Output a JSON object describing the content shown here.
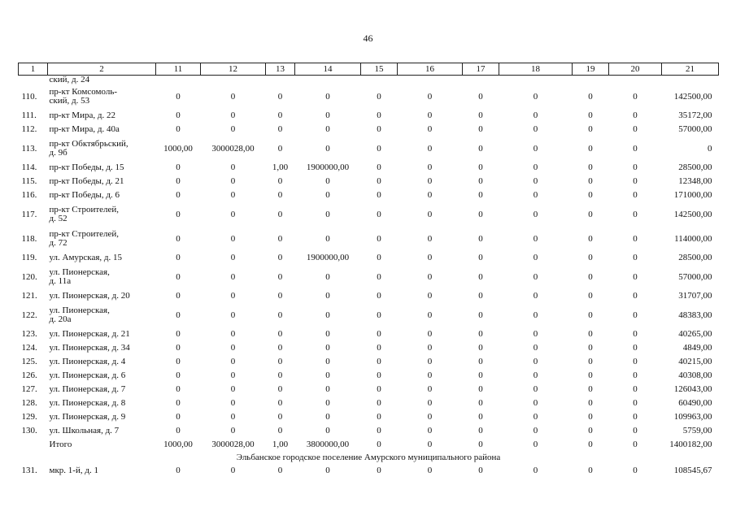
{
  "page_number": "46",
  "header": [
    "1",
    "2",
    "11",
    "12",
    "13",
    "14",
    "15",
    "16",
    "17",
    "18",
    "19",
    "20",
    "21"
  ],
  "continuation": "ский, д. 24",
  "rows": [
    {
      "num": "110.",
      "addr": [
        "пр-кт Комсомоль-",
        "ский, д. 53"
      ],
      "c11": "0",
      "c12": "0",
      "c13": "0",
      "c14": "0",
      "c15": "0",
      "c16": "0",
      "c17": "0",
      "c18": "0",
      "c19": "0",
      "c20": "0",
      "c21": "142500,00"
    },
    {
      "num": "111.",
      "addr": [
        "пр-кт Мира, д. 22"
      ],
      "c11": "0",
      "c12": "0",
      "c13": "0",
      "c14": "0",
      "c15": "0",
      "c16": "0",
      "c17": "0",
      "c18": "0",
      "c19": "0",
      "c20": "0",
      "c21": "35172,00"
    },
    {
      "num": "112.",
      "addr": [
        "пр-кт Мира, д. 40а"
      ],
      "c11": "0",
      "c12": "0",
      "c13": "0",
      "c14": "0",
      "c15": "0",
      "c16": "0",
      "c17": "0",
      "c18": "0",
      "c19": "0",
      "c20": "0",
      "c21": "57000,00"
    },
    {
      "num": "113.",
      "addr": [
        "пр-кт Обктябрьский,",
        "д. 9б"
      ],
      "c11": "1000,00",
      "c12": "3000028,00",
      "c13": "0",
      "c14": "0",
      "c15": "0",
      "c16": "0",
      "c17": "0",
      "c18": "0",
      "c19": "0",
      "c20": "0",
      "c21": "0"
    },
    {
      "num": "114.",
      "addr": [
        "пр-кт Победы, д. 15"
      ],
      "c11": "0",
      "c12": "0",
      "c13": "1,00",
      "c14": "1900000,00",
      "c15": "0",
      "c16": "0",
      "c17": "0",
      "c18": "0",
      "c19": "0",
      "c20": "0",
      "c21": "28500,00"
    },
    {
      "num": "115.",
      "addr": [
        "пр-кт Победы, д. 21"
      ],
      "c11": "0",
      "c12": "0",
      "c13": "0",
      "c14": "0",
      "c15": "0",
      "c16": "0",
      "c17": "0",
      "c18": "0",
      "c19": "0",
      "c20": "0",
      "c21": "12348,00"
    },
    {
      "num": "116.",
      "addr": [
        "пр-кт Победы, д. 6"
      ],
      "c11": "0",
      "c12": "0",
      "c13": "0",
      "c14": "0",
      "c15": "0",
      "c16": "0",
      "c17": "0",
      "c18": "0",
      "c19": "0",
      "c20": "0",
      "c21": "171000,00"
    },
    {
      "num": "117.",
      "addr": [
        "пр-кт Строителей,",
        "д. 52"
      ],
      "c11": "0",
      "c12": "0",
      "c13": "0",
      "c14": "0",
      "c15": "0",
      "c16": "0",
      "c17": "0",
      "c18": "0",
      "c19": "0",
      "c20": "0",
      "c21": "142500,00"
    },
    {
      "num": "118.",
      "addr": [
        "пр-кт Строителей,",
        "д. 72"
      ],
      "c11": "0",
      "c12": "0",
      "c13": "0",
      "c14": "0",
      "c15": "0",
      "c16": "0",
      "c17": "0",
      "c18": "0",
      "c19": "0",
      "c20": "0",
      "c21": "114000,00"
    },
    {
      "num": "119.",
      "addr": [
        "ул. Амурская, д. 15"
      ],
      "c11": "0",
      "c12": "0",
      "c13": "0",
      "c14": "1900000,00",
      "c15": "0",
      "c16": "0",
      "c17": "0",
      "c18": "0",
      "c19": "0",
      "c20": "0",
      "c21": "28500,00"
    },
    {
      "num": "120.",
      "addr": [
        "ул. Пионерская,",
        "д. 11а"
      ],
      "c11": "0",
      "c12": "0",
      "c13": "0",
      "c14": "0",
      "c15": "0",
      "c16": "0",
      "c17": "0",
      "c18": "0",
      "c19": "0",
      "c20": "0",
      "c21": "57000,00"
    },
    {
      "num": "121.",
      "addr": [
        "ул. Пионерская, д. 20"
      ],
      "c11": "0",
      "c12": "0",
      "c13": "0",
      "c14": "0",
      "c15": "0",
      "c16": "0",
      "c17": "0",
      "c18": "0",
      "c19": "0",
      "c20": "0",
      "c21": "31707,00"
    },
    {
      "num": "122.",
      "addr": [
        "ул. Пионерская,",
        "д. 20а"
      ],
      "c11": "0",
      "c12": "0",
      "c13": "0",
      "c14": "0",
      "c15": "0",
      "c16": "0",
      "c17": "0",
      "c18": "0",
      "c19": "0",
      "c20": "0",
      "c21": "48383,00"
    },
    {
      "num": "123.",
      "addr": [
        "ул. Пионерская, д. 21"
      ],
      "c11": "0",
      "c12": "0",
      "c13": "0",
      "c14": "0",
      "c15": "0",
      "c16": "0",
      "c17": "0",
      "c18": "0",
      "c19": "0",
      "c20": "0",
      "c21": "40265,00"
    },
    {
      "num": "124.",
      "addr": [
        "ул. Пионерская, д. 34"
      ],
      "c11": "0",
      "c12": "0",
      "c13": "0",
      "c14": "0",
      "c15": "0",
      "c16": "0",
      "c17": "0",
      "c18": "0",
      "c19": "0",
      "c20": "0",
      "c21": "4849,00"
    },
    {
      "num": "125.",
      "addr": [
        "ул. Пионерская, д. 4"
      ],
      "c11": "0",
      "c12": "0",
      "c13": "0",
      "c14": "0",
      "c15": "0",
      "c16": "0",
      "c17": "0",
      "c18": "0",
      "c19": "0",
      "c20": "0",
      "c21": "40215,00"
    },
    {
      "num": "126.",
      "addr": [
        "ул. Пионерская, д. 6"
      ],
      "c11": "0",
      "c12": "0",
      "c13": "0",
      "c14": "0",
      "c15": "0",
      "c16": "0",
      "c17": "0",
      "c18": "0",
      "c19": "0",
      "c20": "0",
      "c21": "40308,00"
    },
    {
      "num": "127.",
      "addr": [
        "ул. Пионерская, д. 7"
      ],
      "c11": "0",
      "c12": "0",
      "c13": "0",
      "c14": "0",
      "c15": "0",
      "c16": "0",
      "c17": "0",
      "c18": "0",
      "c19": "0",
      "c20": "0",
      "c21": "126043,00"
    },
    {
      "num": "128.",
      "addr": [
        "ул. Пионерская, д. 8"
      ],
      "c11": "0",
      "c12": "0",
      "c13": "0",
      "c14": "0",
      "c15": "0",
      "c16": "0",
      "c17": "0",
      "c18": "0",
      "c19": "0",
      "c20": "0",
      "c21": "60490,00"
    },
    {
      "num": "129.",
      "addr": [
        "ул. Пионерская, д. 9"
      ],
      "c11": "0",
      "c12": "0",
      "c13": "0",
      "c14": "0",
      "c15": "0",
      "c16": "0",
      "c17": "0",
      "c18": "0",
      "c19": "0",
      "c20": "0",
      "c21": "109963,00"
    },
    {
      "num": "130.",
      "addr": [
        "ул. Школьная, д. 7"
      ],
      "c11": "0",
      "c12": "0",
      "c13": "0",
      "c14": "0",
      "c15": "0",
      "c16": "0",
      "c17": "0",
      "c18": "0",
      "c19": "0",
      "c20": "0",
      "c21": "5759,00"
    },
    {
      "num": "",
      "addr": [
        "Итого"
      ],
      "c11": "1000,00",
      "c12": "3000028,00",
      "c13": "1,00",
      "c14": "3800000,00",
      "c15": "0",
      "c16": "0",
      "c17": "0",
      "c18": "0",
      "c19": "0",
      "c20": "0",
      "c21": "1400182,00"
    }
  ],
  "section_title": "Эльбанское городское поселение Амурского муниципального района",
  "after_rows": [
    {
      "num": "131.",
      "addr": [
        "мкр. 1-й, д. 1"
      ],
      "c11": "0",
      "c12": "0",
      "c13": "0",
      "c14": "0",
      "c15": "0",
      "c16": "0",
      "c17": "0",
      "c18": "0",
      "c19": "0",
      "c20": "0",
      "c21": "108545,67"
    }
  ]
}
